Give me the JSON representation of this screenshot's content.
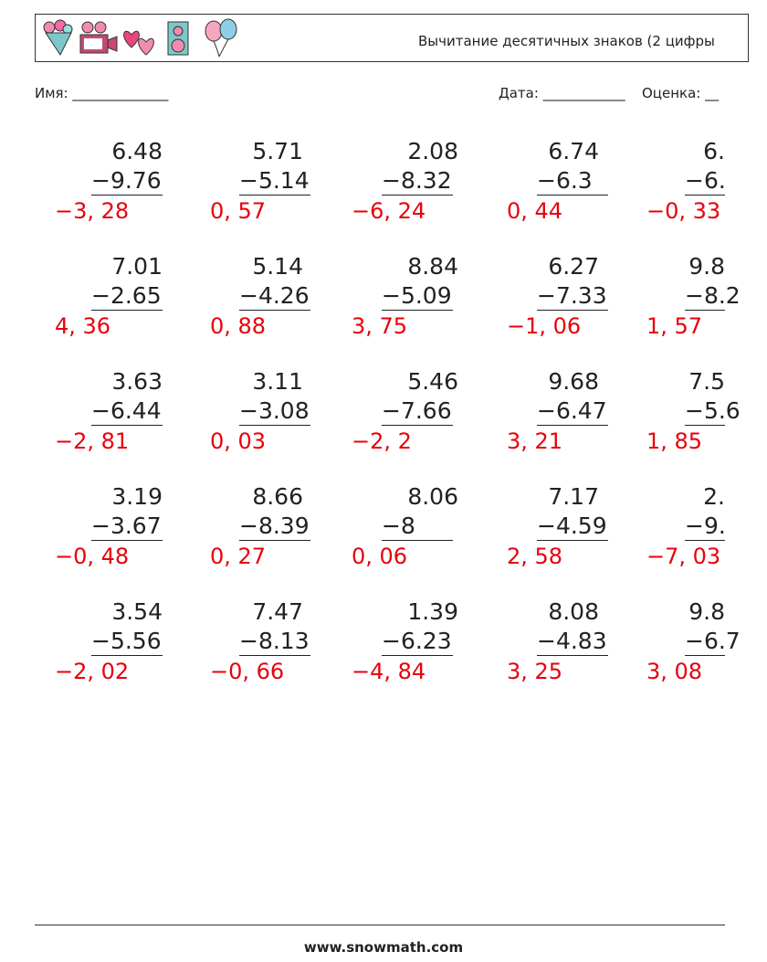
{
  "header": {
    "title": "Вычитание десятичных знаков (2 цифры"
  },
  "fields": {
    "name": "Имя: ______________",
    "date": "Дата: ____________",
    "grade": "Оценка: __"
  },
  "problems": [
    [
      {
        "top": "6.48",
        "bottom": "−9.76",
        "answer": "−3, 28"
      },
      {
        "top": "5.71",
        "bottom": "−5.14",
        "answer": "0, 57"
      },
      {
        "top": "2.08",
        "bottom": "−8.32",
        "answer": "−6, 24"
      },
      {
        "top": "6.74",
        "bottom": "−6.3",
        "answer": "0, 44"
      },
      {
        "top": "6.",
        "bottom": "−6.",
        "answer": "−0, 33"
      }
    ],
    [
      {
        "top": "7.01",
        "bottom": "−2.65",
        "answer": "4, 36"
      },
      {
        "top": "5.14",
        "bottom": "−4.26",
        "answer": "0, 88"
      },
      {
        "top": "8.84",
        "bottom": "−5.09",
        "answer": "3, 75"
      },
      {
        "top": "6.27",
        "bottom": "−7.33",
        "answer": "−1, 06"
      },
      {
        "top": "9.8",
        "bottom": "−8.2",
        "answer": "1, 57"
      }
    ],
    [
      {
        "top": "3.63",
        "bottom": "−6.44",
        "answer": "−2, 81"
      },
      {
        "top": "3.11",
        "bottom": "−3.08",
        "answer": "0, 03"
      },
      {
        "top": "5.46",
        "bottom": "−7.66",
        "answer": "−2, 2"
      },
      {
        "top": "9.68",
        "bottom": "−6.47",
        "answer": "3, 21"
      },
      {
        "top": "7.5",
        "bottom": "−5.6",
        "answer": "1, 85"
      }
    ],
    [
      {
        "top": "3.19",
        "bottom": "−3.67",
        "answer": "−0, 48"
      },
      {
        "top": "8.66",
        "bottom": "−8.39",
        "answer": "0, 27"
      },
      {
        "top": "8.06",
        "bottom": "−8",
        "answer": "0, 06"
      },
      {
        "top": "7.17",
        "bottom": "−4.59",
        "answer": "2, 58"
      },
      {
        "top": "2.",
        "bottom": "−9.",
        "answer": "−7, 03"
      }
    ],
    [
      {
        "top": "3.54",
        "bottom": "−5.56",
        "answer": "−2, 02"
      },
      {
        "top": "7.47",
        "bottom": "−8.13",
        "answer": "−0, 66"
      },
      {
        "top": "1.39",
        "bottom": "−6.23",
        "answer": "−4, 84"
      },
      {
        "top": "8.08",
        "bottom": "−4.83",
        "answer": "3, 25"
      },
      {
        "top": "9.8",
        "bottom": "−6.7",
        "answer": "3, 08"
      }
    ]
  ],
  "footer": {
    "url": "www.snowmath.com"
  }
}
